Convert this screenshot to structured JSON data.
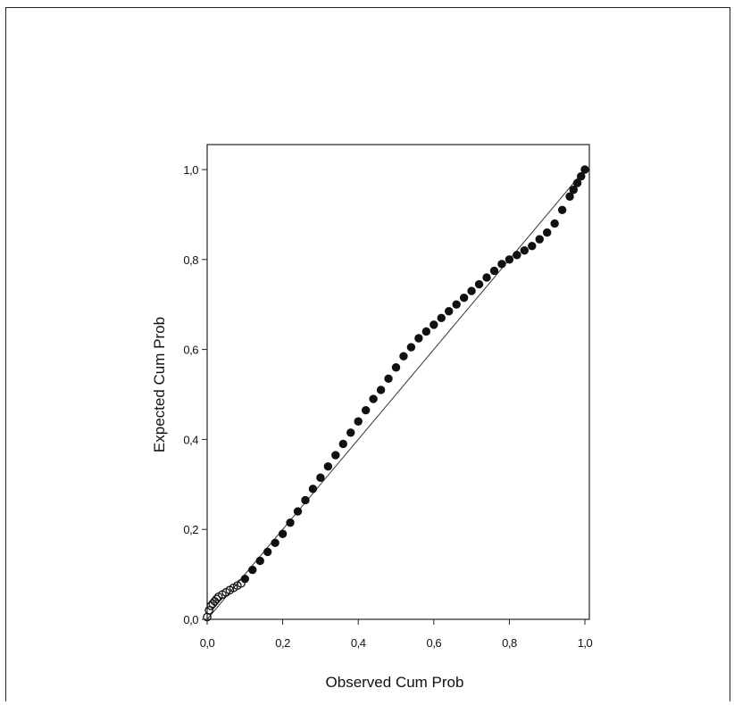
{
  "chart_data": {
    "type": "scatter",
    "title": "",
    "xlabel": "Observed Cum Prob",
    "ylabel": "Expected Cum Prob",
    "xlim": [
      0.0,
      1.0
    ],
    "ylim": [
      0.0,
      1.0
    ],
    "xticks": [
      0.0,
      0.2,
      0.4,
      0.6,
      0.8,
      1.0
    ],
    "yticks": [
      0.0,
      0.2,
      0.4,
      0.6,
      0.8,
      1.0
    ],
    "xtick_labels": [
      "0,0",
      "0,2",
      "0,4",
      "0,6",
      "0,8",
      "1,0"
    ],
    "ytick_labels": [
      "0,0",
      "0,2",
      "0,4",
      "0,6",
      "0,8",
      "1,0"
    ],
    "grid": false,
    "legend": "none",
    "reference_line": {
      "from": [
        0.0,
        0.0
      ],
      "to": [
        1.0,
        1.0
      ]
    },
    "marker_color": "#111111",
    "series": [
      {
        "x": [
          0.0,
          0.005,
          0.01,
          0.015,
          0.02,
          0.025,
          0.03,
          0.04,
          0.05,
          0.06,
          0.07,
          0.08,
          0.09,
          0.1,
          0.12,
          0.14,
          0.16,
          0.18,
          0.2,
          0.22,
          0.24,
          0.26,
          0.28,
          0.3,
          0.32,
          0.34,
          0.36,
          0.38,
          0.4,
          0.42,
          0.44,
          0.46,
          0.48,
          0.5,
          0.52,
          0.54,
          0.56,
          0.58,
          0.6,
          0.62,
          0.64,
          0.66,
          0.68,
          0.7,
          0.72,
          0.74,
          0.76,
          0.78,
          0.8,
          0.82,
          0.84,
          0.86,
          0.88,
          0.9,
          0.92,
          0.94,
          0.96,
          0.97,
          0.98,
          0.99,
          1.0
        ],
        "y": [
          0.005,
          0.02,
          0.03,
          0.035,
          0.04,
          0.045,
          0.05,
          0.055,
          0.06,
          0.065,
          0.07,
          0.075,
          0.08,
          0.09,
          0.11,
          0.13,
          0.15,
          0.17,
          0.19,
          0.215,
          0.24,
          0.265,
          0.29,
          0.315,
          0.34,
          0.365,
          0.39,
          0.415,
          0.44,
          0.465,
          0.49,
          0.51,
          0.535,
          0.56,
          0.585,
          0.605,
          0.625,
          0.64,
          0.655,
          0.67,
          0.685,
          0.7,
          0.715,
          0.73,
          0.745,
          0.76,
          0.775,
          0.79,
          0.8,
          0.81,
          0.82,
          0.83,
          0.845,
          0.86,
          0.88,
          0.91,
          0.94,
          0.955,
          0.97,
          0.985,
          1.0
        ]
      }
    ]
  }
}
